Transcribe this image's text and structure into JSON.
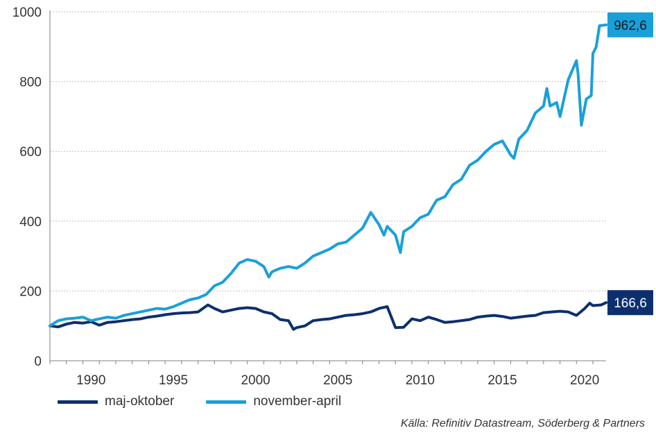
{
  "chart_data": {
    "type": "line",
    "title": "",
    "xlabel": "",
    "ylabel": "",
    "xlim": [
      1988,
      2021.8
    ],
    "ylim": [
      0,
      1000
    ],
    "x_ticks": [
      "1990",
      "1995",
      "2000",
      "2005",
      "2010",
      "2015",
      "2020"
    ],
    "y_ticks": [
      "0",
      "200",
      "400",
      "600",
      "800",
      "1000"
    ],
    "grid": "horizontal",
    "legend": "bottom-left",
    "series": [
      {
        "name": "maj-oktober",
        "color": "#0d2f6e",
        "end_label": "166,6",
        "points": [
          [
            1988.0,
            100
          ],
          [
            1988.5,
            97
          ],
          [
            1989.0,
            105
          ],
          [
            1989.5,
            110
          ],
          [
            1990.0,
            108
          ],
          [
            1990.5,
            112
          ],
          [
            1991.0,
            102
          ],
          [
            1991.5,
            110
          ],
          [
            1992.0,
            112
          ],
          [
            1992.5,
            115
          ],
          [
            1993.0,
            118
          ],
          [
            1993.5,
            120
          ],
          [
            1994.0,
            125
          ],
          [
            1994.5,
            128
          ],
          [
            1995.0,
            132
          ],
          [
            1995.5,
            135
          ],
          [
            1996.0,
            137
          ],
          [
            1996.5,
            138
          ],
          [
            1997.0,
            140
          ],
          [
            1997.6,
            160
          ],
          [
            1998.0,
            150
          ],
          [
            1998.5,
            140
          ],
          [
            1999.0,
            145
          ],
          [
            1999.5,
            150
          ],
          [
            2000.0,
            152
          ],
          [
            2000.5,
            150
          ],
          [
            2001.0,
            140
          ],
          [
            2001.5,
            135
          ],
          [
            2002.0,
            118
          ],
          [
            2002.5,
            115
          ],
          [
            2002.8,
            90
          ],
          [
            2003.0,
            95
          ],
          [
            2003.5,
            100
          ],
          [
            2004.0,
            115
          ],
          [
            2004.5,
            118
          ],
          [
            2005.0,
            120
          ],
          [
            2005.5,
            125
          ],
          [
            2006.0,
            130
          ],
          [
            2006.5,
            132
          ],
          [
            2007.0,
            135
          ],
          [
            2007.5,
            140
          ],
          [
            2008.0,
            150
          ],
          [
            2008.5,
            155
          ],
          [
            2009.0,
            95
          ],
          [
            2009.5,
            96
          ],
          [
            2010.0,
            120
          ],
          [
            2010.5,
            115
          ],
          [
            2011.0,
            125
          ],
          [
            2011.5,
            118
          ],
          [
            2012.0,
            110
          ],
          [
            2012.5,
            112
          ],
          [
            2013.0,
            115
          ],
          [
            2013.5,
            118
          ],
          [
            2014.0,
            125
          ],
          [
            2014.5,
            128
          ],
          [
            2015.0,
            130
          ],
          [
            2015.5,
            127
          ],
          [
            2016.0,
            122
          ],
          [
            2016.5,
            125
          ],
          [
            2017.0,
            128
          ],
          [
            2017.5,
            130
          ],
          [
            2018.0,
            138
          ],
          [
            2018.5,
            140
          ],
          [
            2019.0,
            142
          ],
          [
            2019.5,
            140
          ],
          [
            2020.0,
            130
          ],
          [
            2020.5,
            150
          ],
          [
            2020.8,
            165
          ],
          [
            2021.0,
            158
          ],
          [
            2021.5,
            160
          ],
          [
            2021.8,
            166.6
          ]
        ]
      },
      {
        "name": "november-april",
        "color": "#1aa0d8",
        "end_label": "962,6",
        "points": [
          [
            1988.0,
            100
          ],
          [
            1988.5,
            115
          ],
          [
            1989.0,
            120
          ],
          [
            1989.5,
            122
          ],
          [
            1990.0,
            125
          ],
          [
            1990.5,
            115
          ],
          [
            1991.0,
            120
          ],
          [
            1991.5,
            125
          ],
          [
            1992.0,
            122
          ],
          [
            1992.5,
            130
          ],
          [
            1993.0,
            135
          ],
          [
            1993.5,
            140
          ],
          [
            1994.0,
            145
          ],
          [
            1994.5,
            150
          ],
          [
            1995.0,
            148
          ],
          [
            1995.5,
            155
          ],
          [
            1996.0,
            165
          ],
          [
            1996.5,
            175
          ],
          [
            1997.0,
            180
          ],
          [
            1997.5,
            190
          ],
          [
            1998.0,
            215
          ],
          [
            1998.5,
            225
          ],
          [
            1999.0,
            250
          ],
          [
            1999.5,
            280
          ],
          [
            2000.0,
            290
          ],
          [
            2000.5,
            285
          ],
          [
            2001.0,
            270
          ],
          [
            2001.3,
            240
          ],
          [
            2001.5,
            255
          ],
          [
            2002.0,
            265
          ],
          [
            2002.5,
            270
          ],
          [
            2003.0,
            265
          ],
          [
            2003.5,
            280
          ],
          [
            2004.0,
            300
          ],
          [
            2004.5,
            310
          ],
          [
            2005.0,
            320
          ],
          [
            2005.5,
            335
          ],
          [
            2006.0,
            340
          ],
          [
            2006.5,
            360
          ],
          [
            2007.0,
            380
          ],
          [
            2007.5,
            425
          ],
          [
            2008.0,
            390
          ],
          [
            2008.3,
            360
          ],
          [
            2008.5,
            385
          ],
          [
            2009.0,
            360
          ],
          [
            2009.3,
            310
          ],
          [
            2009.5,
            370
          ],
          [
            2010.0,
            385
          ],
          [
            2010.5,
            410
          ],
          [
            2011.0,
            420
          ],
          [
            2011.5,
            460
          ],
          [
            2012.0,
            470
          ],
          [
            2012.5,
            505
          ],
          [
            2013.0,
            520
          ],
          [
            2013.5,
            560
          ],
          [
            2014.0,
            575
          ],
          [
            2014.5,
            600
          ],
          [
            2015.0,
            620
          ],
          [
            2015.5,
            630
          ],
          [
            2016.0,
            590
          ],
          [
            2016.2,
            580
          ],
          [
            2016.5,
            635
          ],
          [
            2017.0,
            660
          ],
          [
            2017.5,
            710
          ],
          [
            2018.0,
            730
          ],
          [
            2018.2,
            780
          ],
          [
            2018.4,
            730
          ],
          [
            2018.8,
            740
          ],
          [
            2019.0,
            700
          ],
          [
            2019.5,
            805
          ],
          [
            2020.0,
            860
          ],
          [
            2020.1,
            820
          ],
          [
            2020.3,
            675
          ],
          [
            2020.6,
            750
          ],
          [
            2020.9,
            760
          ],
          [
            2021.0,
            880
          ],
          [
            2021.2,
            900
          ],
          [
            2021.4,
            960
          ],
          [
            2021.8,
            962.6
          ]
        ]
      }
    ]
  },
  "source": "Källa: Refinitiv Datastream, Söderberg & Partners"
}
